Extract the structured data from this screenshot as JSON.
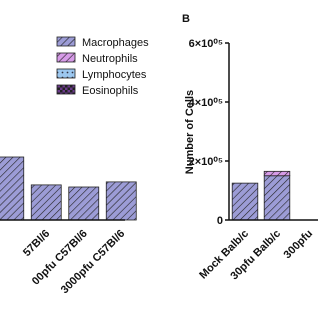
{
  "chart_data": [
    {
      "type": "bar",
      "stacked": true,
      "categories": [
        null,
        "57Bl/6",
        "00pfu C57Bl/6",
        "3000pfu C57Bl/6"
      ],
      "series": [
        {
          "name": "Macrophages",
          "color": "#9c9cd6",
          "values": [
            210000,
            117000,
            110000,
            127000
          ]
        },
        {
          "name": "Neutrophils",
          "color": "#d79be8",
          "values": [
            0,
            0,
            0,
            0
          ]
        },
        {
          "name": "Lymphocytes",
          "color": "#9cc8f0",
          "values": [
            0,
            0,
            0,
            0
          ]
        },
        {
          "name": "Eosinophils",
          "color": "#6a3a8a",
          "values": [
            0,
            0,
            0,
            0
          ]
        }
      ],
      "ylim": [
        0,
        600000
      ]
    },
    {
      "type": "bar",
      "stacked": true,
      "panel_label": "B",
      "ylabel": "Number of Cells",
      "categories": [
        "Mock Balb/c",
        "30pfu Balb/c",
        "300pfu"
      ],
      "series": [
        {
          "name": "Macrophages",
          "color": "#9c9cd6",
          "values": [
            125000,
            150000,
            null
          ]
        },
        {
          "name": "Neutrophils",
          "color": "#d79be8",
          "values": [
            0,
            15000,
            null
          ]
        },
        {
          "name": "Lymphocytes",
          "color": "#9cc8f0",
          "values": [
            0,
            0,
            null
          ]
        },
        {
          "name": "Eosinophils",
          "color": "#6a3a8a",
          "values": [
            0,
            0,
            null
          ]
        }
      ],
      "ylim": [
        0,
        600000
      ],
      "yticks": [
        0,
        {
          "value": 200000,
          "label": "2×10⁰⁵"
        },
        {
          "value": 400000,
          "label": "4×10⁰⁵"
        },
        {
          "value": 600000,
          "label": "6×10⁰⁵"
        }
      ]
    }
  ]
}
